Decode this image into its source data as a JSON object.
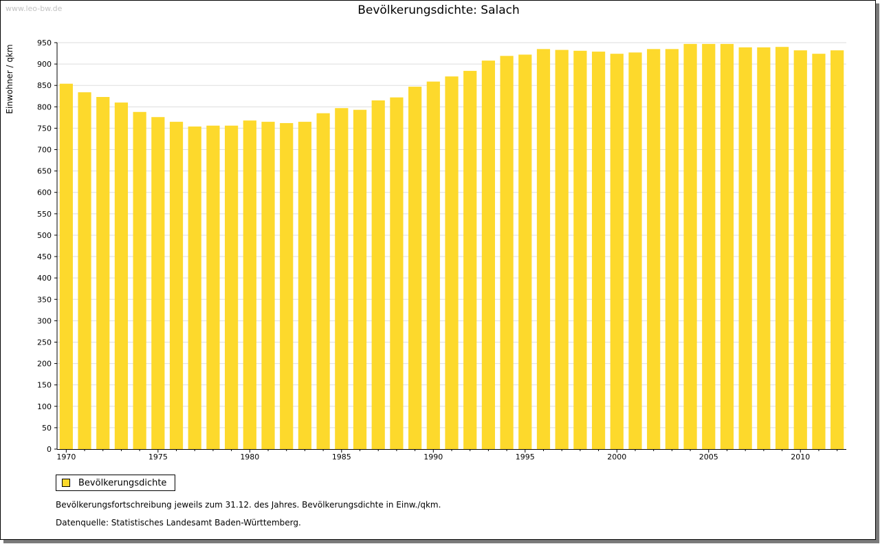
{
  "watermark": "www.leo-bw.de",
  "footnotes": {
    "line1": "Bevölkerungsfortschreibung jeweils zum 31.12. des Jahres. Bevölkerungsdichte in Einw./qkm.",
    "line2": "Datenquelle: Statistisches Landesamt Baden-Württemberg."
  },
  "colors": {
    "bar": "#fdd92c",
    "grid": "#dddddd",
    "axis": "#000000"
  },
  "chart_data": {
    "type": "bar",
    "title": "Bevölkerungsdichte: Salach",
    "ylabel": "Einwohner / qkm",
    "xlabel": "",
    "ylim": [
      0,
      950
    ],
    "ytick_step": 50,
    "grid": true,
    "legend": "bottom-left",
    "xtick_labels": [
      "1970",
      "1975",
      "1980",
      "1985",
      "1990",
      "1995",
      "2000",
      "2005",
      "2010"
    ],
    "categories": [
      "1970",
      "1971",
      "1972",
      "1973",
      "1974",
      "1975",
      "1976",
      "1977",
      "1978",
      "1979",
      "1980",
      "1981",
      "1982",
      "1983",
      "1984",
      "1985",
      "1986",
      "1987",
      "1988",
      "1989",
      "1990",
      "1991",
      "1992",
      "1993",
      "1994",
      "1995",
      "1996",
      "1997",
      "1998",
      "1999",
      "2000",
      "2001",
      "2002",
      "2003",
      "2004",
      "2005",
      "2006",
      "2007",
      "2008",
      "2009",
      "2010",
      "2011",
      "2012"
    ],
    "series": [
      {
        "name": "Bevölkerungsdichte",
        "values": [
          854,
          834,
          823,
          810,
          788,
          776,
          765,
          754,
          756,
          756,
          768,
          765,
          762,
          765,
          785,
          797,
          793,
          815,
          822,
          847,
          859,
          871,
          884,
          908,
          919,
          922,
          935,
          933,
          931,
          929,
          924,
          927,
          935,
          935,
          947,
          947,
          947,
          939,
          939,
          940,
          932,
          924,
          932
        ]
      }
    ]
  }
}
